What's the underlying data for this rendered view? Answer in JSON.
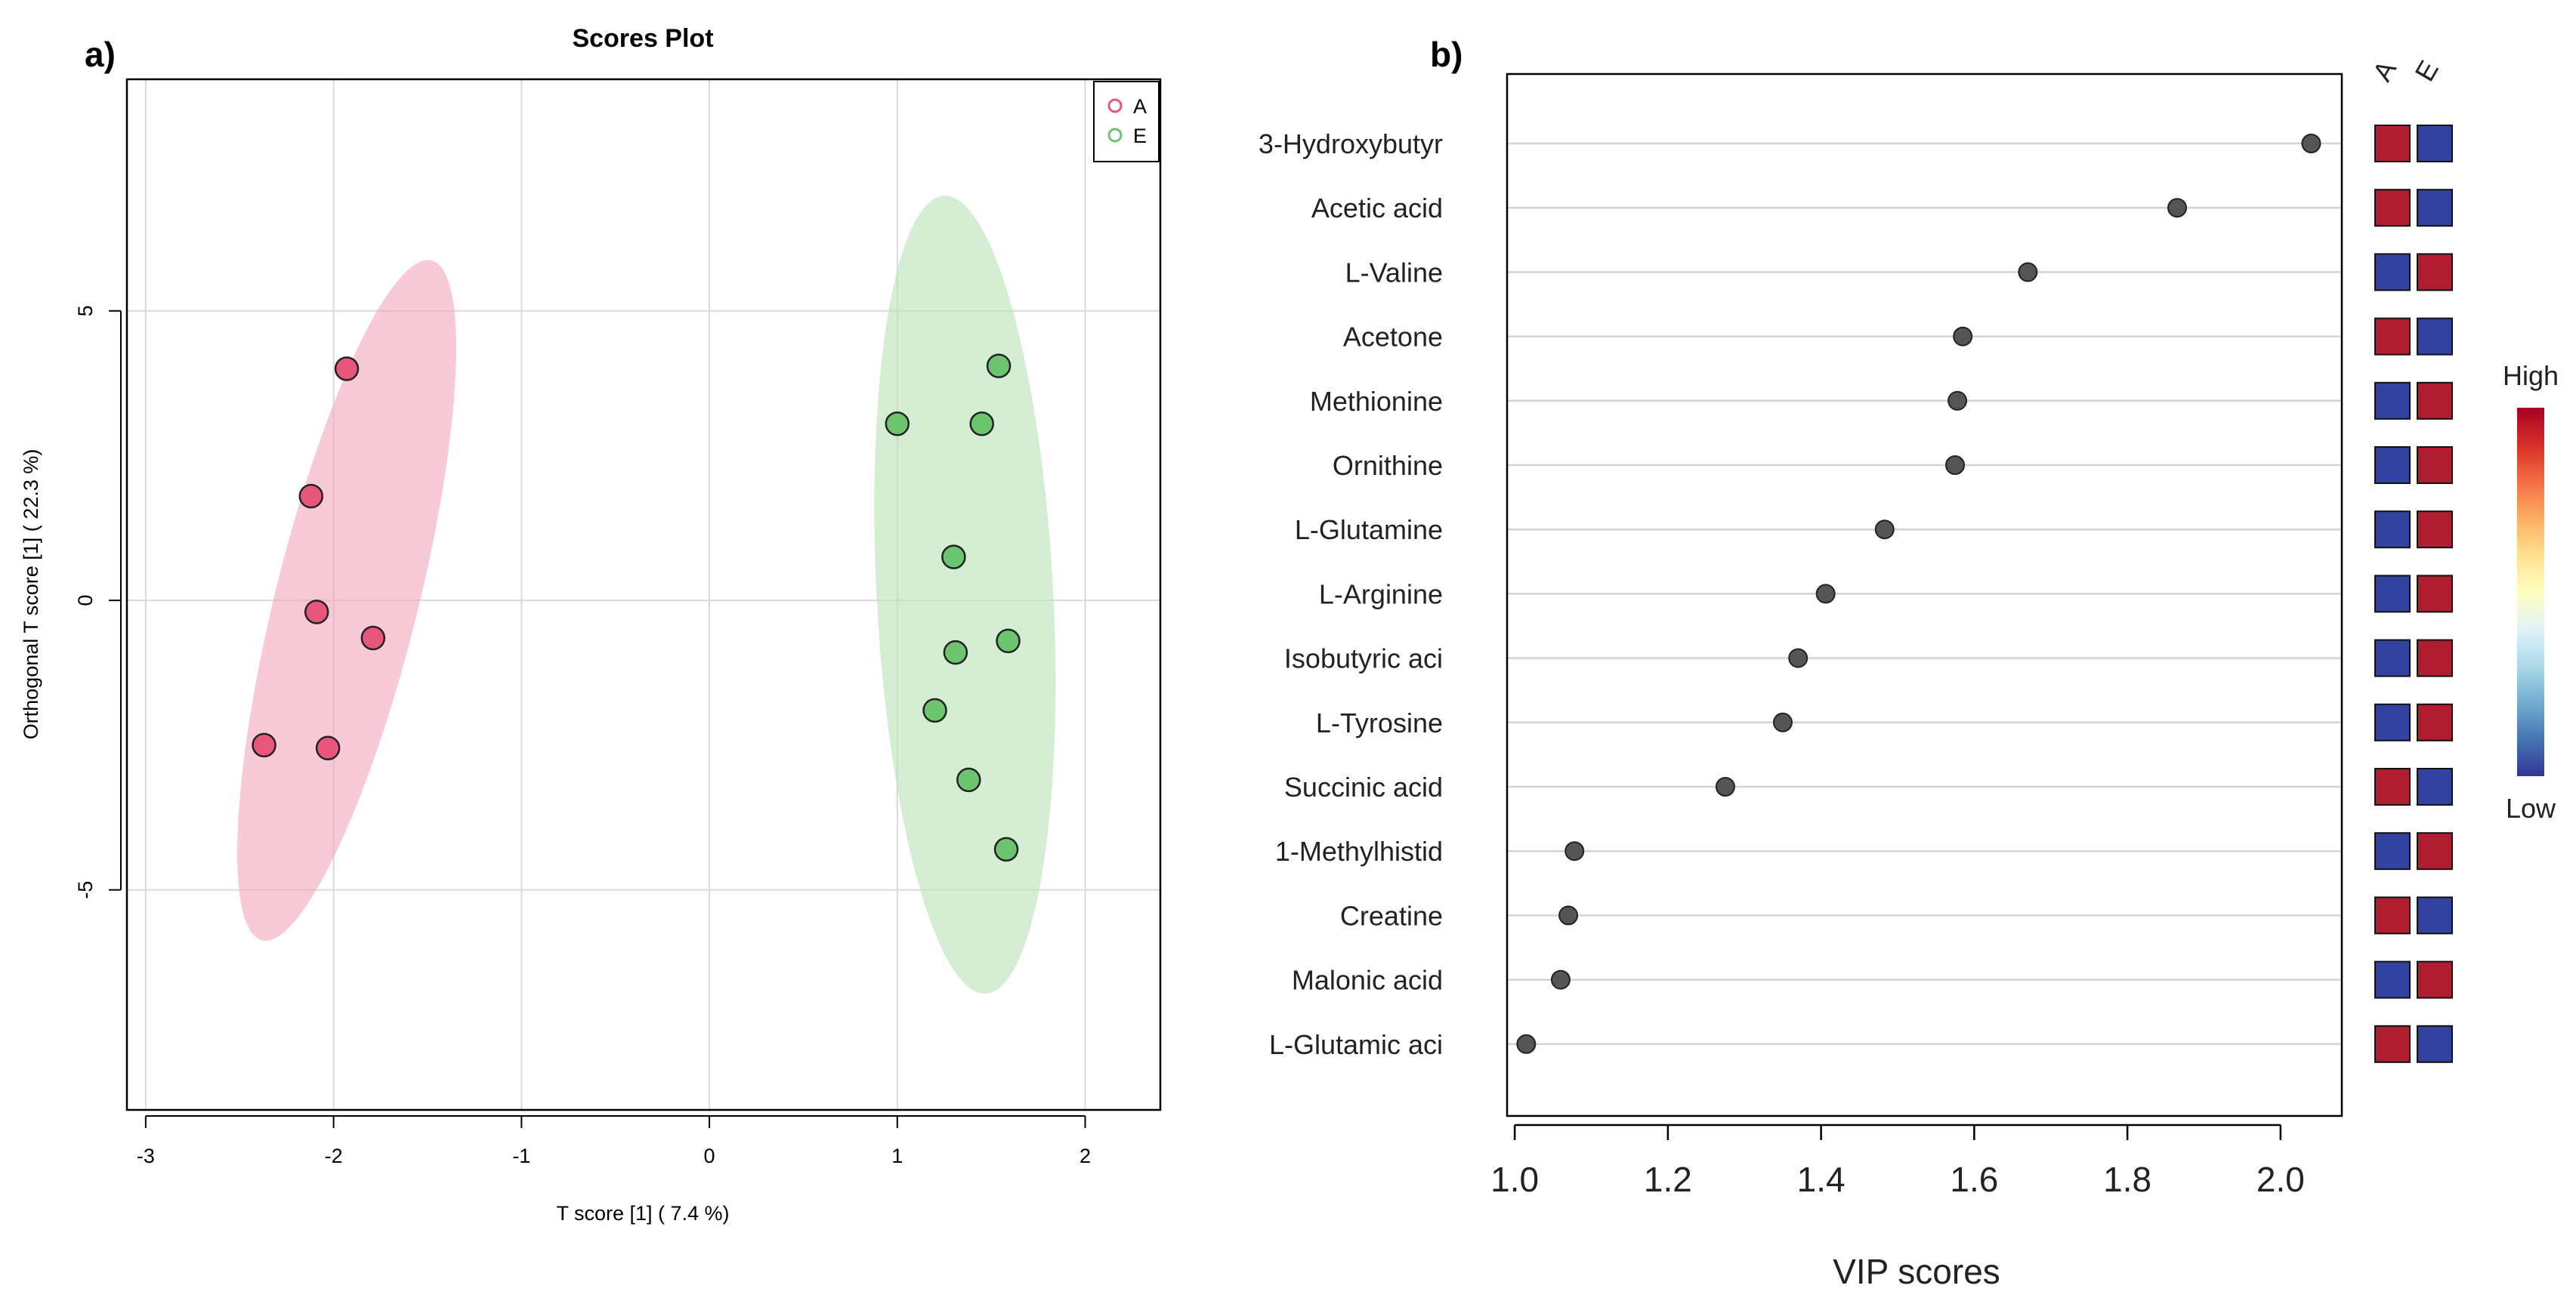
{
  "panel_a": {
    "label": "a)",
    "chart_data": {
      "type": "scatter",
      "title": "Scores Plot",
      "xlabel": "T score [1] ( 7.4 %)",
      "ylabel": "Orthogonal T score [1] ( 22.3 %)",
      "xlim": [
        -3.1,
        2.4
      ],
      "ylim": [
        -8.8,
        9.0
      ],
      "xticks": [
        -3,
        -2,
        -1,
        0,
        1,
        2
      ],
      "yticks": [
        -5,
        0,
        5
      ],
      "xtick_labels": [
        "-3",
        "-2",
        "-1",
        "0",
        "1",
        "2"
      ],
      "ytick_labels": [
        "-5",
        "0",
        "5"
      ],
      "grid": true,
      "legend": {
        "position": "top-right",
        "entries": [
          "A",
          "E"
        ]
      },
      "series": [
        {
          "name": "A",
          "color": "#e8577b",
          "ellipse_color": "#f4a7bd",
          "ellipse": {
            "cx": -1.93,
            "cy": 0.0,
            "rx": 0.38,
            "ry": 6.05,
            "rotate": 14
          },
          "points": [
            {
              "x": -1.93,
              "y": 4.0
            },
            {
              "x": -2.12,
              "y": 1.8
            },
            {
              "x": -2.09,
              "y": -0.2
            },
            {
              "x": -1.79,
              "y": -0.65
            },
            {
              "x": -2.37,
              "y": -2.5
            },
            {
              "x": -2.03,
              "y": -2.55
            }
          ]
        },
        {
          "name": "E",
          "color": "#6cc46f",
          "ellipse_color": "#b9e3b5",
          "ellipse": {
            "cx": 1.36,
            "cy": 0.1,
            "rx": 0.47,
            "ry": 6.9,
            "rotate": -3
          },
          "points": [
            {
              "x": 1.54,
              "y": 4.05
            },
            {
              "x": 1.0,
              "y": 3.05
            },
            {
              "x": 1.45,
              "y": 3.05
            },
            {
              "x": 1.3,
              "y": 0.75
            },
            {
              "x": 1.59,
              "y": -0.7
            },
            {
              "x": 1.31,
              "y": -0.9
            },
            {
              "x": 1.2,
              "y": -1.9
            },
            {
              "x": 1.38,
              "y": -3.1
            },
            {
              "x": 1.58,
              "y": -4.3
            }
          ]
        }
      ]
    }
  },
  "panel_b": {
    "label": "b)",
    "chart_data": {
      "type": "scatter",
      "xlabel": "VIP scores",
      "xlim": [
        0.99,
        2.08
      ],
      "xticks": [
        1.0,
        1.2,
        1.4,
        1.6,
        1.8,
        2.0
      ],
      "xtick_labels": [
        "1.0",
        "1.2",
        "1.4",
        "1.6",
        "1.8",
        "2.0"
      ],
      "features": [
        "3-Hydroxybutyr",
        "Acetic acid",
        "L-Valine",
        "Acetone",
        "Methionine",
        "Ornithine",
        "L-Glutamine",
        "L-Arginine",
        "Isobutyric aci",
        "L-Tyrosine",
        "Succinic acid",
        "1-Methylhistid",
        "Creatine",
        "Malonic acid",
        "L-Glutamic aci"
      ],
      "values": [
        2.04,
        1.865,
        1.67,
        1.585,
        1.578,
        1.575,
        1.483,
        1.406,
        1.37,
        1.35,
        1.275,
        1.078,
        1.07,
        1.06,
        1.015
      ],
      "point_color": "#555555",
      "heatmap": {
        "columns": [
          "A",
          "E"
        ],
        "levels": [
          [
            "High",
            "Low"
          ],
          [
            "High",
            "Low"
          ],
          [
            "Low",
            "High"
          ],
          [
            "High",
            "Low"
          ],
          [
            "Low",
            "High"
          ],
          [
            "Low",
            "High"
          ],
          [
            "Low",
            "High"
          ],
          [
            "Low",
            "High"
          ],
          [
            "Low",
            "High"
          ],
          [
            "Low",
            "High"
          ],
          [
            "High",
            "Low"
          ],
          [
            "Low",
            "High"
          ],
          [
            "High",
            "Low"
          ],
          [
            "Low",
            "High"
          ],
          [
            "High",
            "Low"
          ]
        ],
        "high_color": "#b01c30",
        "low_color": "#3341a0"
      },
      "colorbar": {
        "high_label": "High",
        "low_label": "Low",
        "colors": [
          "#a50026",
          "#d73027",
          "#f46d43",
          "#fdae61",
          "#fee090",
          "#ffffbf",
          "#e0f3f8",
          "#abd9e9",
          "#74add1",
          "#4575b4",
          "#313695"
        ]
      }
    }
  }
}
